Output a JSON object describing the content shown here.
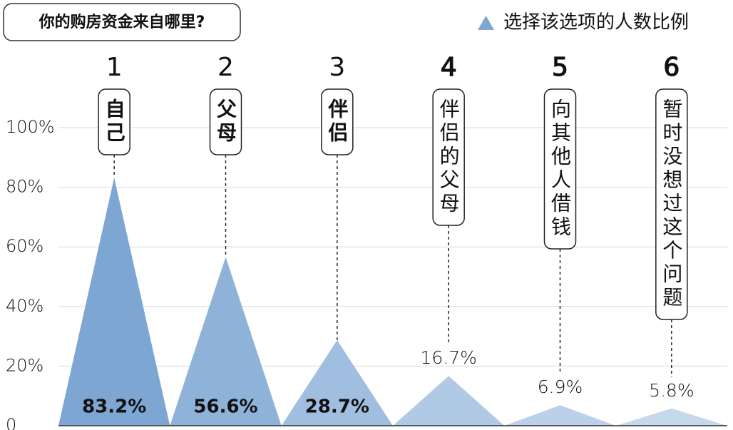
{
  "chart_data": {
    "type": "peak",
    "title": "你的购房资金来自哪里?",
    "legend": "选择该选项的人数比例",
    "ranks": [
      1,
      2,
      3,
      4,
      5,
      6
    ],
    "categories": [
      "自己",
      "父母",
      "伴侣",
      "伴侣的父母",
      "向其他人借钱",
      "暂时没想过这个问题"
    ],
    "values": [
      83.2,
      56.6,
      28.7,
      16.7,
      6.9,
      5.8
    ],
    "value_labels": [
      "83.2%",
      "56.6%",
      "28.7%",
      "16.7%",
      "6.9%",
      "5.8%"
    ],
    "colors": [
      "#7ea6d2",
      "#8fb2d9",
      "#a0bedf",
      "#b0c9e5",
      "#bcd1e9",
      "#c6d8ec"
    ],
    "legend_color": "#7ea6d2",
    "ylim": [
      0,
      100
    ],
    "yticks": [
      0,
      {
        "value": 20,
        "label": "20%"
      },
      {
        "value": 40,
        "label": "40%"
      },
      {
        "value": 60,
        "label": "60%"
      },
      {
        "value": 80,
        "label": "80%"
      },
      {
        "value": 100,
        "label": "100%"
      }
    ],
    "grid": true
  }
}
